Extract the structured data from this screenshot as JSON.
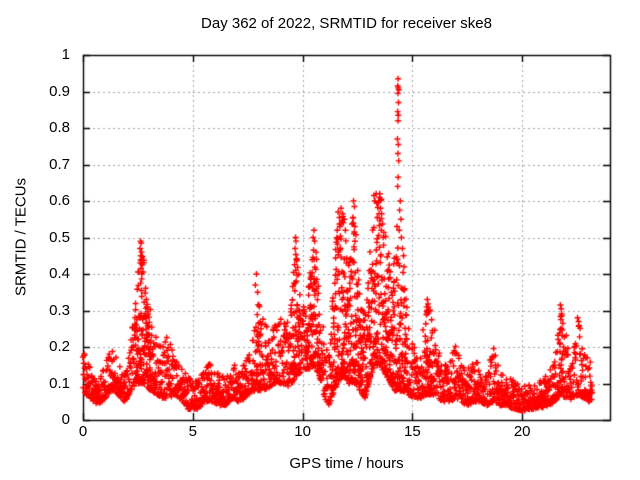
{
  "colors": {
    "background": "#ffffff",
    "marker": "#ff0000",
    "axis": "#000000",
    "grid": "#a8a8a8",
    "text": "#000000"
  },
  "chart_data": {
    "type": "scatter",
    "title": "Day 362 of 2022, SRMTID for receiver ske8",
    "xlabel": "GPS time / hours",
    "ylabel": "SRMTID / TECUs",
    "xlim": [
      0,
      24
    ],
    "ylim": [
      0,
      1
    ],
    "xticks": [
      0,
      5,
      10,
      15,
      20
    ],
    "yticks": [
      0,
      0.1,
      0.2,
      0.3,
      0.4,
      0.5,
      0.6,
      0.7,
      0.8,
      0.9,
      1
    ],
    "grid": true,
    "legend": false,
    "marker": {
      "shape": "plus",
      "color": "#ff0000",
      "size": 7
    },
    "x_data_start": 0,
    "x_data_end": 23.2,
    "envelope": [
      [
        0.0,
        0.08,
        0.19
      ],
      [
        0.3,
        0.06,
        0.15
      ],
      [
        0.7,
        0.04,
        0.1
      ],
      [
        1.0,
        0.06,
        0.15
      ],
      [
        1.3,
        0.08,
        0.2
      ],
      [
        1.6,
        0.07,
        0.16
      ],
      [
        1.9,
        0.05,
        0.13
      ],
      [
        2.2,
        0.08,
        0.25
      ],
      [
        2.45,
        0.1,
        0.35
      ],
      [
        2.6,
        0.1,
        0.49
      ],
      [
        2.75,
        0.1,
        0.46
      ],
      [
        2.9,
        0.09,
        0.32
      ],
      [
        3.1,
        0.08,
        0.33
      ],
      [
        3.35,
        0.07,
        0.22
      ],
      [
        3.6,
        0.06,
        0.2
      ],
      [
        3.9,
        0.06,
        0.24
      ],
      [
        4.2,
        0.07,
        0.19
      ],
      [
        4.5,
        0.05,
        0.14
      ],
      [
        4.8,
        0.03,
        0.12
      ],
      [
        5.2,
        0.03,
        0.11
      ],
      [
        5.6,
        0.05,
        0.15
      ],
      [
        5.9,
        0.05,
        0.16
      ],
      [
        6.2,
        0.04,
        0.12
      ],
      [
        6.5,
        0.04,
        0.13
      ],
      [
        6.8,
        0.06,
        0.16
      ],
      [
        7.1,
        0.05,
        0.14
      ],
      [
        7.4,
        0.06,
        0.16
      ],
      [
        7.7,
        0.08,
        0.26
      ],
      [
        8.0,
        0.08,
        0.32
      ],
      [
        8.2,
        0.08,
        0.28
      ],
      [
        8.5,
        0.09,
        0.25
      ],
      [
        8.8,
        0.1,
        0.3
      ],
      [
        9.1,
        0.1,
        0.32
      ],
      [
        9.4,
        0.09,
        0.26
      ],
      [
        9.7,
        0.12,
        0.5
      ],
      [
        9.9,
        0.13,
        0.35
      ],
      [
        10.1,
        0.14,
        0.32
      ],
      [
        10.35,
        0.14,
        0.47
      ],
      [
        10.55,
        0.15,
        0.52
      ],
      [
        10.75,
        0.12,
        0.35
      ],
      [
        11.0,
        0.06,
        0.22
      ],
      [
        11.2,
        0.04,
        0.2
      ],
      [
        11.45,
        0.08,
        0.4
      ],
      [
        11.6,
        0.1,
        0.57
      ],
      [
        11.85,
        0.12,
        0.58
      ],
      [
        12.1,
        0.1,
        0.45
      ],
      [
        12.35,
        0.1,
        0.6
      ],
      [
        12.6,
        0.08,
        0.35
      ],
      [
        12.85,
        0.06,
        0.3
      ],
      [
        13.1,
        0.12,
        0.5
      ],
      [
        13.3,
        0.15,
        0.62
      ],
      [
        13.55,
        0.15,
        0.62
      ],
      [
        13.8,
        0.12,
        0.55
      ],
      [
        14.0,
        0.1,
        0.4
      ],
      [
        14.2,
        0.08,
        0.45
      ],
      [
        14.4,
        0.08,
        0.5
      ],
      [
        14.6,
        0.08,
        0.42
      ],
      [
        14.8,
        0.07,
        0.28
      ],
      [
        15.1,
        0.06,
        0.2
      ],
      [
        15.4,
        0.06,
        0.22
      ],
      [
        15.65,
        0.07,
        0.33
      ],
      [
        15.9,
        0.07,
        0.3
      ],
      [
        16.15,
        0.06,
        0.2
      ],
      [
        16.4,
        0.05,
        0.15
      ],
      [
        16.7,
        0.05,
        0.18
      ],
      [
        16.95,
        0.06,
        0.22
      ],
      [
        17.2,
        0.05,
        0.15
      ],
      [
        17.5,
        0.04,
        0.14
      ],
      [
        17.8,
        0.05,
        0.16
      ],
      [
        18.1,
        0.05,
        0.17
      ],
      [
        18.4,
        0.04,
        0.13
      ],
      [
        18.7,
        0.05,
        0.21
      ],
      [
        19.0,
        0.04,
        0.13
      ],
      [
        19.3,
        0.04,
        0.12
      ],
      [
        19.6,
        0.03,
        0.11
      ],
      [
        20.0,
        0.025,
        0.1
      ],
      [
        20.4,
        0.03,
        0.1
      ],
      [
        20.8,
        0.03,
        0.11
      ],
      [
        21.2,
        0.04,
        0.13
      ],
      [
        21.5,
        0.05,
        0.18
      ],
      [
        21.75,
        0.07,
        0.32
      ],
      [
        22.0,
        0.06,
        0.24
      ],
      [
        22.3,
        0.05,
        0.18
      ],
      [
        22.55,
        0.07,
        0.28
      ],
      [
        22.8,
        0.06,
        0.22
      ],
      [
        23.0,
        0.05,
        0.18
      ],
      [
        23.2,
        0.05,
        0.15
      ]
    ],
    "peak_points": [
      [
        2.62,
        0.49
      ],
      [
        2.65,
        0.485
      ],
      [
        2.6,
        0.47
      ],
      [
        2.67,
        0.46
      ],
      [
        2.63,
        0.45
      ],
      [
        2.66,
        0.44
      ],
      [
        2.61,
        0.43
      ],
      [
        2.64,
        0.415
      ],
      [
        2.68,
        0.4
      ],
      [
        2.62,
        0.375
      ],
      [
        2.66,
        0.355
      ],
      [
        7.9,
        0.4
      ],
      [
        7.85,
        0.37
      ],
      [
        7.95,
        0.35
      ],
      [
        9.68,
        0.5
      ],
      [
        9.7,
        0.49
      ],
      [
        9.66,
        0.47
      ],
      [
        9.72,
        0.44
      ],
      [
        9.69,
        0.41
      ],
      [
        9.71,
        0.38
      ],
      [
        10.52,
        0.52
      ],
      [
        10.48,
        0.5
      ],
      [
        10.55,
        0.49
      ],
      [
        10.5,
        0.465
      ],
      [
        10.53,
        0.44
      ],
      [
        11.62,
        0.57
      ],
      [
        11.68,
        0.555
      ],
      [
        11.75,
        0.58
      ],
      [
        11.82,
        0.565
      ],
      [
        11.9,
        0.55
      ],
      [
        11.58,
        0.52
      ],
      [
        11.7,
        0.53
      ],
      [
        11.85,
        0.54
      ],
      [
        11.95,
        0.52
      ],
      [
        12.32,
        0.6
      ],
      [
        12.36,
        0.585
      ],
      [
        12.3,
        0.555
      ],
      [
        12.38,
        0.53
      ],
      [
        12.34,
        0.51
      ],
      [
        13.25,
        0.615
      ],
      [
        13.35,
        0.62
      ],
      [
        13.5,
        0.61
      ],
      [
        13.3,
        0.6
      ],
      [
        13.45,
        0.595
      ],
      [
        13.55,
        0.58
      ],
      [
        13.6,
        0.565
      ],
      [
        13.4,
        0.555
      ],
      [
        14.35,
        0.935
      ],
      [
        14.33,
        0.915
      ],
      [
        14.36,
        0.91
      ],
      [
        14.38,
        0.905
      ],
      [
        14.34,
        0.895
      ],
      [
        14.37,
        0.87
      ],
      [
        14.33,
        0.845
      ],
      [
        14.36,
        0.835
      ],
      [
        14.35,
        0.82
      ],
      [
        14.32,
        0.77
      ],
      [
        14.36,
        0.755
      ],
      [
        14.34,
        0.73
      ],
      [
        14.38,
        0.71
      ],
      [
        14.35,
        0.665
      ],
      [
        14.33,
        0.64
      ],
      [
        14.45,
        0.6
      ],
      [
        14.42,
        0.575
      ],
      [
        14.48,
        0.55
      ],
      [
        14.3,
        0.53
      ],
      [
        14.4,
        0.52
      ],
      [
        14.5,
        0.5
      ],
      [
        14.55,
        0.47
      ],
      [
        14.6,
        0.45
      ],
      [
        14.62,
        0.42
      ],
      [
        14.65,
        0.36
      ],
      [
        15.68,
        0.33
      ],
      [
        15.72,
        0.31
      ],
      [
        15.65,
        0.29
      ],
      [
        21.74,
        0.315
      ],
      [
        21.78,
        0.305
      ],
      [
        22.52,
        0.28
      ],
      [
        22.57,
        0.27
      ]
    ],
    "sampling": {
      "step_hours": 0.01,
      "bias_power": 1.8,
      "dense_span_threshold": 0.22,
      "seed": 1362
    }
  }
}
